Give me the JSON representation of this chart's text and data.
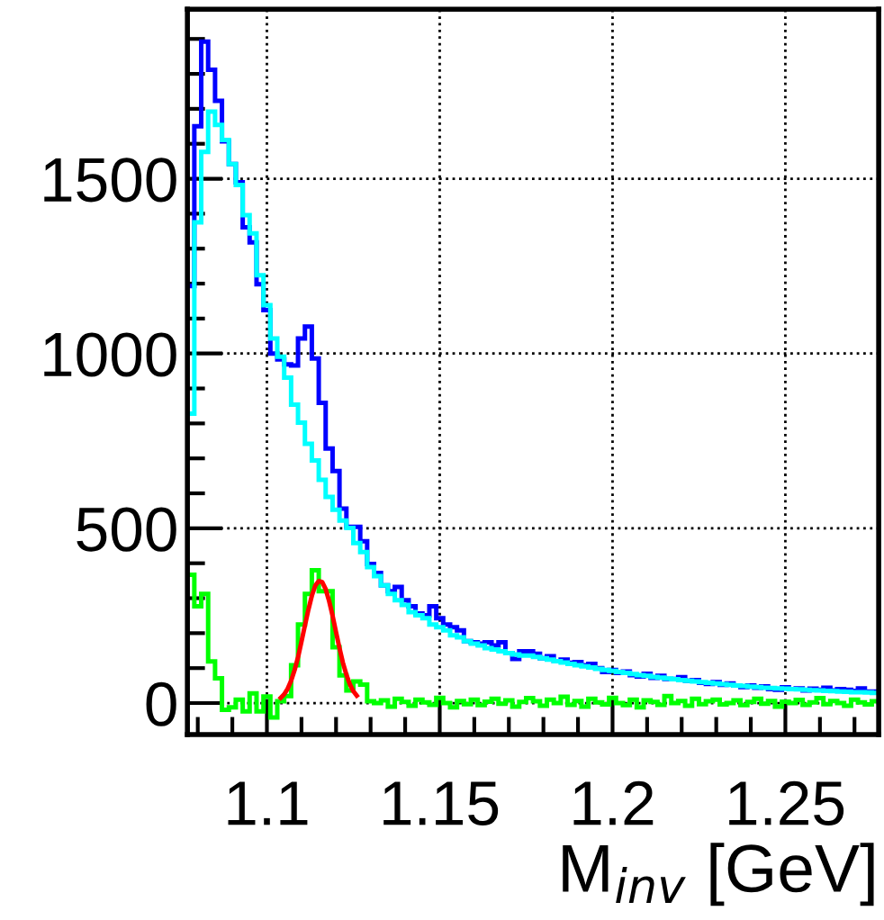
{
  "chart_data": {
    "type": "histogram",
    "xlabel": "M$_{inv}$ [GeV]",
    "bins": [
      1.077,
      1.079,
      1.081,
      1.083,
      1.085,
      1.087,
      1.089,
      1.091,
      1.093,
      1.095,
      1.097,
      1.099,
      1.101,
      1.103,
      1.105,
      1.107,
      1.109,
      1.111,
      1.113,
      1.115,
      1.117,
      1.119,
      1.121,
      1.123,
      1.125,
      1.127,
      1.129,
      1.131,
      1.133,
      1.135,
      1.137,
      1.139,
      1.141,
      1.143,
      1.145,
      1.147,
      1.149,
      1.151,
      1.153,
      1.155,
      1.157,
      1.159,
      1.161,
      1.163,
      1.165,
      1.167,
      1.169,
      1.171,
      1.173,
      1.175,
      1.177,
      1.179,
      1.181,
      1.183,
      1.185,
      1.187,
      1.189,
      1.191,
      1.193,
      1.195,
      1.197,
      1.199,
      1.201,
      1.203,
      1.205,
      1.207,
      1.209,
      1.211,
      1.213,
      1.215,
      1.217,
      1.219,
      1.221,
      1.223,
      1.225,
      1.227,
      1.229,
      1.231,
      1.233,
      1.235,
      1.237,
      1.239,
      1.241,
      1.243,
      1.245,
      1.247,
      1.249,
      1.251,
      1.253,
      1.255,
      1.257,
      1.259,
      1.261,
      1.263,
      1.265,
      1.267,
      1.269,
      1.271,
      1.273,
      1.275,
      1.277
    ],
    "series": [
      {
        "color": "#0000ff",
        "values": [
          1193,
          1650,
          1892,
          1812,
          1723,
          1607,
          1542,
          1490,
          1361,
          1318,
          1198,
          1124,
          1000,
          983,
          969,
          966,
          1043,
          1077,
          986,
          859,
          728,
          664,
          556,
          504,
          504,
          463,
          398,
          372,
          337,
          320,
          332,
          294,
          277,
          256,
          251,
          277,
          243,
          225,
          217,
          208,
          177,
          174,
          170,
          174,
          165,
          174,
          143,
          126,
          148,
          148,
          141,
          128,
          134,
          120,
          124,
          115,
          117,
          108,
          112,
          100,
          89,
          95,
          86,
          90,
          80,
          76,
          84,
          72,
          78,
          69,
          69,
          74,
          64,
          66,
          58,
          55,
          60,
          52,
          56,
          50,
          46,
          50,
          44,
          48,
          40,
          38,
          45,
          40,
          42,
          36,
          41,
          38,
          44,
          36,
          40,
          38,
          35,
          42,
          33,
          33
        ]
      },
      {
        "color": "#00ffff",
        "values": [
          828,
          1375,
          1577,
          1692,
          1654,
          1611,
          1542,
          1482,
          1396,
          1344,
          1224,
          1138,
          1043,
          991,
          931,
          854,
          802,
          742,
          694,
          639,
          590,
          553,
          522,
          501,
          458,
          432,
          389,
          363,
          337,
          312,
          294,
          281,
          260,
          251,
          243,
          225,
          217,
          208,
          194,
          188,
          177,
          170,
          165,
          157,
          153,
          148,
          143,
          139,
          136,
          136,
          132,
          128,
          124,
          120,
          116,
          112,
          108,
          105,
          102,
          98,
          95,
          92,
          89,
          86,
          83,
          80,
          78,
          75,
          73,
          70,
          68,
          66,
          64,
          62,
          60,
          58,
          56,
          54,
          52,
          50,
          49,
          47,
          46,
          44,
          43,
          42,
          41,
          40,
          39,
          38,
          37,
          36,
          35,
          34,
          33,
          32,
          31,
          31,
          30,
          29
        ]
      },
      {
        "color": "#00ff00",
        "values": [
          367,
          277,
          312,
          119,
          71,
          -19,
          -12,
          10,
          -24,
          28,
          -24,
          19,
          -41,
          5,
          20,
          108,
          225,
          312,
          380,
          320,
          320,
          160,
          79,
          36,
          62,
          53,
          5,
          0,
          8,
          -10,
          12,
          3,
          -8,
          10,
          2,
          -5,
          15,
          0,
          -12,
          6,
          -3,
          10,
          -6,
          4,
          12,
          -2,
          8,
          -10,
          3,
          14,
          5,
          -8,
          10,
          0,
          18,
          -5,
          6,
          -10,
          12,
          2,
          -4,
          15,
          0,
          -6,
          10,
          -12,
          8,
          3,
          -5,
          20,
          0,
          6,
          -8,
          12,
          -3,
          5,
          10,
          -4,
          0,
          8,
          -6,
          3,
          12,
          -2,
          6,
          -10,
          4,
          0,
          9,
          -5,
          2,
          14,
          -3,
          6,
          0,
          -8,
          10,
          2,
          -4,
          5
        ]
      },
      {
        "type": "line",
        "color": "#ff0000",
        "x": [
          1.104,
          1.105,
          1.106,
          1.107,
          1.108,
          1.109,
          1.11,
          1.111,
          1.112,
          1.113,
          1.114,
          1.115,
          1.116,
          1.117,
          1.118,
          1.119,
          1.12,
          1.121,
          1.122,
          1.123,
          1.124,
          1.125,
          1.126
        ],
        "values": [
          15,
          25,
          41,
          64,
          94,
          131,
          176,
          222,
          267,
          307,
          336,
          349,
          346,
          326,
          292,
          250,
          203,
          157,
          115,
          81,
          54,
          34,
          21
        ]
      }
    ],
    "xlim": [
      1.077,
      1.277
    ],
    "ylim": [
      -90,
      1985
    ],
    "xticks": [
      {
        "value": 1.1,
        "label": "1.1"
      },
      {
        "value": 1.15,
        "label": "1.15"
      },
      {
        "value": 1.2,
        "label": "1.2"
      },
      {
        "value": 1.25,
        "label": "1.25"
      }
    ],
    "yticks": [
      0,
      500,
      1000,
      1500
    ],
    "grid": true,
    "legend": false
  }
}
